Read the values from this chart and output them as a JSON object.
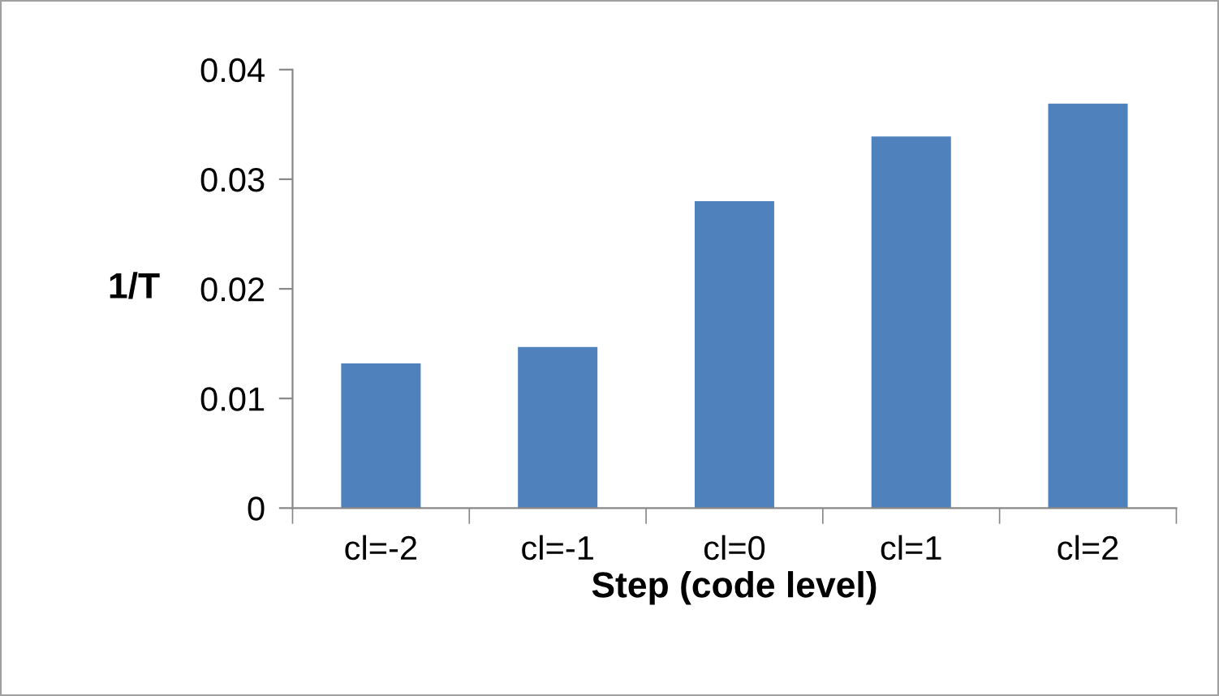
{
  "chart_data": {
    "type": "bar",
    "categories": [
      "cl=-2",
      "cl=-1",
      "cl=0",
      "cl=1",
      "cl=2"
    ],
    "values": [
      0.0132,
      0.0147,
      0.028,
      0.0339,
      0.0369
    ],
    "color": "#4f81bd",
    "xlabel": "Step (code level)",
    "ylabel": "1/T",
    "ylim": [
      0,
      0.04
    ],
    "yticks": [
      {
        "value": 0,
        "label": "0"
      },
      0.01,
      0.02,
      0.03,
      0.04
    ],
    "grid": false,
    "legend": false
  }
}
